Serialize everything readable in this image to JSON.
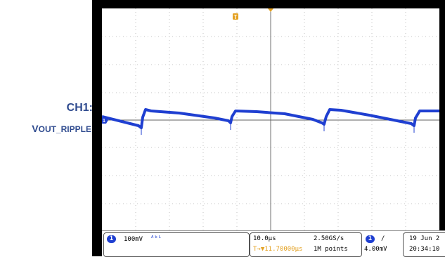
{
  "side_label": {
    "title": "CH1:",
    "subtitle_first": "V",
    "subtitle_rest": "OUT_RIPPLE"
  },
  "markers": {
    "trigger_position": "T",
    "channel": "1"
  },
  "status": {
    "channel_number": "1",
    "volts_per_div": "100mV",
    "bandwidth_icon": "bandwidth-limit-icon",
    "time_per_div": "10.0µs",
    "trigger_delay": "T→▼11.70000µs",
    "sample_rate": "2.50GS/s",
    "record_length": "1M points",
    "trigger_channel": "1",
    "trigger_slope": "/",
    "trigger_level": "4.00mV",
    "date": "19 Jun 2",
    "time": "20:34:10"
  },
  "colors": {
    "trace": "#1f3fd1",
    "trigger_marker": "#e3a020",
    "label": "#2f4b8f"
  }
}
